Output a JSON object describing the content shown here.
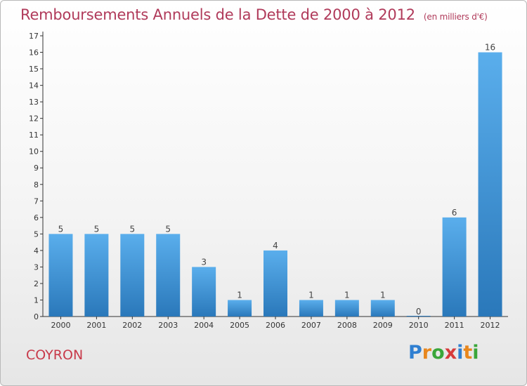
{
  "title": "Remboursements Annuels de la Dette de 2000 à 2012",
  "unit_note": "(en milliers d'€)",
  "commune": "COYRON",
  "logo": {
    "text": "Proxiti",
    "letters": [
      "P",
      "r",
      "o",
      "x",
      "i",
      "t",
      "i"
    ],
    "colors": [
      "#2f7fd1",
      "#e8871e",
      "#3aa63a",
      "#d63b3b",
      "#2f7fd1",
      "#e8871e",
      "#3aa63a"
    ]
  },
  "colors": {
    "title": "#b03a5a",
    "bar_top": "#5aaeec",
    "bar_bottom": "#2a78ba",
    "axis": "#333333"
  },
  "chart_data": {
    "type": "bar",
    "title": "Remboursements Annuels de la Dette de 2000 à 2012",
    "ylabel": "en milliers d'€",
    "xlabel": "",
    "categories": [
      "2000",
      "2001",
      "2002",
      "2003",
      "2004",
      "2005",
      "2006",
      "2007",
      "2008",
      "2009",
      "2010",
      "2011",
      "2012"
    ],
    "values": [
      5,
      5,
      5,
      5,
      3,
      1,
      4,
      1,
      1,
      1,
      0,
      6,
      16
    ],
    "ylim": [
      0,
      17
    ],
    "yticks": [
      0,
      1,
      2,
      3,
      4,
      5,
      6,
      7,
      8,
      9,
      10,
      11,
      12,
      13,
      14,
      15,
      16,
      17
    ],
    "grid": false
  }
}
